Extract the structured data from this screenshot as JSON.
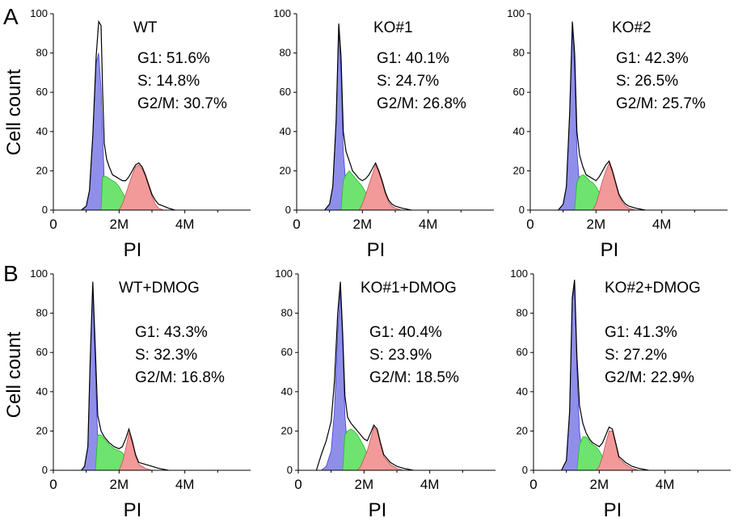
{
  "figure": {
    "panel_labels": [
      "A",
      "B"
    ],
    "ylabel": "Cell count",
    "xlabel": "PI"
  },
  "colors": {
    "g1": "#8f8fea",
    "s": "#6fe36f",
    "g2m": "#f29a9a",
    "outline": "#000000"
  },
  "chart_data": [
    {
      "type": "area",
      "title": "WT",
      "xlabel": "PI",
      "ylabel": "Cell count",
      "xticks": [
        "0",
        "2M",
        "4M"
      ],
      "yticks": [
        "0",
        "20",
        "40",
        "60",
        "80",
        "100"
      ],
      "xlim": [
        0,
        6.0
      ],
      "ylim": [
        0,
        100
      ],
      "stats": [
        "G1: 51.6%",
        "S: 14.8%",
        "G2/M: 30.7%"
      ],
      "x": [
        0.85,
        1.0,
        1.1,
        1.2,
        1.3,
        1.38,
        1.45,
        1.5,
        1.55,
        1.62,
        1.7,
        1.8,
        1.9,
        2.0,
        2.1,
        2.2,
        2.3,
        2.4,
        2.5,
        2.6,
        2.7,
        2.8,
        2.9,
        3.0,
        3.1,
        3.2,
        3.35,
        3.5,
        3.7
      ],
      "total": [
        0,
        2,
        10,
        38,
        78,
        96,
        94,
        60,
        34,
        26,
        22,
        18,
        17,
        16,
        15,
        15,
        17,
        20,
        23,
        24,
        22,
        18,
        13,
        8,
        5,
        3,
        2,
        1,
        0
      ],
      "g1": [
        0,
        2,
        10,
        38,
        75,
        80,
        62,
        38,
        15,
        5,
        1,
        0,
        0,
        0,
        0,
        0,
        0,
        0,
        0,
        0,
        0,
        0,
        0,
        0,
        0,
        0,
        0,
        0,
        0
      ],
      "s": [
        0,
        0,
        0,
        0,
        0,
        0,
        0,
        17,
        17,
        17,
        16,
        15,
        14,
        12,
        9,
        6,
        3,
        1,
        0,
        0,
        0,
        0,
        0,
        0,
        0,
        0,
        0,
        0,
        0
      ],
      "g2m": [
        0,
        0,
        0,
        0,
        0,
        0,
        0,
        0,
        0,
        0,
        0,
        0,
        0,
        0,
        3,
        8,
        13,
        18,
        22,
        23,
        21,
        17,
        12,
        7,
        3,
        1,
        0,
        0,
        0
      ]
    },
    {
      "type": "area",
      "title": "KO#1",
      "xlabel": "PI",
      "ylabel": "Cell count",
      "xticks": [
        "0",
        "2M",
        "4M"
      ],
      "yticks": [
        "0",
        "20",
        "40",
        "60",
        "80",
        "100"
      ],
      "xlim": [
        0,
        6.0
      ],
      "ylim": [
        0,
        100
      ],
      "stats": [
        "G1: 40.1%",
        "S: 24.7%",
        "G2/M: 26.8%"
      ],
      "x": [
        0.85,
        1.0,
        1.1,
        1.2,
        1.28,
        1.35,
        1.42,
        1.5,
        1.6,
        1.7,
        1.8,
        1.9,
        2.0,
        2.1,
        2.2,
        2.3,
        2.4,
        2.5,
        2.6,
        2.7,
        2.8,
        2.9,
        3.0,
        3.2,
        3.5
      ],
      "total": [
        0,
        3,
        12,
        45,
        95,
        78,
        40,
        30,
        25,
        20,
        18,
        16,
        15,
        16,
        18,
        21,
        24,
        20,
        15,
        9,
        5,
        3,
        2,
        1,
        0
      ],
      "g1": [
        0,
        3,
        12,
        45,
        92,
        70,
        30,
        12,
        3,
        0,
        0,
        0,
        0,
        0,
        0,
        0,
        0,
        0,
        0,
        0,
        0,
        0,
        0,
        0,
        0
      ],
      "s": [
        0,
        0,
        0,
        0,
        0,
        0,
        15,
        18,
        20,
        18,
        16,
        14,
        12,
        9,
        6,
        3,
        1,
        0,
        0,
        0,
        0,
        0,
        0,
        0,
        0
      ],
      "g2m": [
        0,
        0,
        0,
        0,
        0,
        0,
        0,
        0,
        0,
        0,
        0,
        0,
        3,
        8,
        13,
        18,
        23,
        19,
        14,
        8,
        4,
        2,
        1,
        0,
        0
      ]
    },
    {
      "type": "area",
      "title": "KO#2",
      "xlabel": "PI",
      "ylabel": "Cell count",
      "xticks": [
        "0",
        "2M",
        "4M"
      ],
      "yticks": [
        "0",
        "20",
        "40",
        "60",
        "80",
        "100"
      ],
      "xlim": [
        0,
        6.0
      ],
      "ylim": [
        0,
        100
      ],
      "stats": [
        "G1: 42.3%",
        "S: 26.5%",
        "G2/M: 25.7%"
      ],
      "x": [
        0.85,
        1.0,
        1.1,
        1.2,
        1.28,
        1.35,
        1.42,
        1.5,
        1.6,
        1.7,
        1.8,
        1.9,
        2.0,
        2.1,
        2.2,
        2.3,
        2.4,
        2.5,
        2.6,
        2.7,
        2.8,
        2.9,
        3.0,
        3.2,
        3.5
      ],
      "total": [
        0,
        3,
        12,
        50,
        96,
        80,
        40,
        28,
        22,
        18,
        17,
        16,
        15,
        17,
        20,
        23,
        25,
        20,
        14,
        8,
        5,
        3,
        2,
        1,
        0
      ],
      "g1": [
        0,
        3,
        12,
        50,
        93,
        72,
        30,
        12,
        3,
        0,
        0,
        0,
        0,
        0,
        0,
        0,
        0,
        0,
        0,
        0,
        0,
        0,
        0,
        0,
        0
      ],
      "s": [
        0,
        0,
        0,
        0,
        0,
        0,
        14,
        17,
        18,
        17,
        15,
        14,
        12,
        9,
        6,
        3,
        1,
        0,
        0,
        0,
        0,
        0,
        0,
        0,
        0
      ],
      "g2m": [
        0,
        0,
        0,
        0,
        0,
        0,
        0,
        0,
        0,
        0,
        0,
        0,
        3,
        9,
        15,
        20,
        24,
        19,
        13,
        7,
        4,
        2,
        1,
        0,
        0
      ]
    },
    {
      "type": "area",
      "title": "WT+DMOG",
      "xlabel": "PI",
      "ylabel": "Cell count",
      "xticks": [
        "0",
        "2M",
        "4M"
      ],
      "yticks": [
        "0",
        "20",
        "40",
        "60",
        "80",
        "100"
      ],
      "xlim": [
        0,
        6.0
      ],
      "ylim": [
        0,
        100
      ],
      "stats": [
        "G1: 43.3%",
        "S: 32.3%",
        "G2/M: 16.8%"
      ],
      "x": [
        0.85,
        0.95,
        1.05,
        1.12,
        1.2,
        1.28,
        1.35,
        1.45,
        1.55,
        1.7,
        1.85,
        2.0,
        2.1,
        2.2,
        2.3,
        2.4,
        2.5,
        2.6,
        2.8,
        3.0,
        3.2,
        3.5
      ],
      "total": [
        0,
        2,
        12,
        55,
        96,
        60,
        28,
        20,
        17,
        14,
        12,
        11,
        12,
        16,
        21,
        15,
        8,
        4,
        3,
        2,
        1,
        0
      ],
      "g1": [
        0,
        2,
        12,
        55,
        93,
        50,
        15,
        5,
        1,
        0,
        0,
        0,
        0,
        0,
        0,
        0,
        0,
        0,
        0,
        0,
        0,
        0
      ],
      "s": [
        0,
        0,
        0,
        0,
        0,
        0,
        18,
        18,
        16,
        13,
        11,
        10,
        9,
        6,
        3,
        1,
        0,
        0,
        0,
        0,
        0,
        0
      ],
      "g2m": [
        0,
        0,
        0,
        0,
        0,
        0,
        0,
        0,
        0,
        0,
        0,
        0,
        4,
        11,
        19,
        14,
        7,
        3,
        1,
        0,
        0,
        0
      ]
    },
    {
      "type": "area",
      "title": "KO#1+DMOG",
      "xlabel": "PI",
      "ylabel": "Cell count",
      "xticks": [
        "0",
        "2M",
        "4M"
      ],
      "yticks": [
        "0",
        "20",
        "40",
        "60",
        "80",
        "100"
      ],
      "xlim": [
        0,
        6.0
      ],
      "ylim": [
        0,
        100
      ],
      "stats": [
        "G1: 40.4%",
        "S: 23.9%",
        "G2/M: 18.5%"
      ],
      "x": [
        0.55,
        0.7,
        0.85,
        1.0,
        1.1,
        1.2,
        1.28,
        1.35,
        1.42,
        1.5,
        1.6,
        1.7,
        1.8,
        1.9,
        2.0,
        2.1,
        2.2,
        2.3,
        2.4,
        2.5,
        2.6,
        2.8,
        3.0,
        3.2,
        3.5
      ],
      "total": [
        0,
        8,
        15,
        25,
        45,
        80,
        96,
        70,
        38,
        27,
        24,
        22,
        20,
        18,
        16,
        15,
        19,
        23,
        21,
        14,
        8,
        4,
        2,
        1,
        0
      ],
      "g1": [
        0,
        0,
        2,
        10,
        30,
        70,
        92,
        65,
        28,
        10,
        3,
        0,
        0,
        0,
        0,
        0,
        0,
        0,
        0,
        0,
        0,
        0,
        0,
        0,
        0
      ],
      "s": [
        0,
        0,
        0,
        0,
        0,
        0,
        0,
        0,
        18,
        20,
        21,
        20,
        18,
        15,
        12,
        8,
        4,
        1,
        0,
        0,
        0,
        0,
        0,
        0,
        0
      ],
      "g2m": [
        0,
        0,
        0,
        0,
        0,
        0,
        0,
        0,
        0,
        0,
        0,
        0,
        0,
        2,
        6,
        10,
        16,
        22,
        20,
        13,
        7,
        3,
        1,
        0,
        0
      ]
    },
    {
      "type": "area",
      "title": "KO#2+DMOG",
      "xlabel": "PI",
      "ylabel": "Cell count",
      "xticks": [
        "0",
        "2M",
        "4M"
      ],
      "yticks": [
        "0",
        "20",
        "40",
        "60",
        "80",
        "100"
      ],
      "xlim": [
        0,
        6.0
      ],
      "ylim": [
        0,
        100
      ],
      "stats": [
        "G1: 41.3%",
        "S: 27.2%",
        "G2/M: 22.9%"
      ],
      "x": [
        0.85,
        1.0,
        1.1,
        1.18,
        1.25,
        1.32,
        1.4,
        1.5,
        1.6,
        1.7,
        1.8,
        1.9,
        2.0,
        2.1,
        2.2,
        2.3,
        2.4,
        2.5,
        2.6,
        2.8,
        3.0,
        3.2,
        3.5
      ],
      "total": [
        0,
        5,
        30,
        88,
        97,
        58,
        33,
        24,
        19,
        16,
        14,
        13,
        12,
        14,
        18,
        22,
        21,
        14,
        7,
        4,
        2,
        1,
        0
      ],
      "g1": [
        0,
        5,
        30,
        86,
        94,
        52,
        20,
        6,
        1,
        0,
        0,
        0,
        0,
        0,
        0,
        0,
        0,
        0,
        0,
        0,
        0,
        0,
        0
      ],
      "s": [
        0,
        0,
        0,
        0,
        0,
        0,
        13,
        17,
        17,
        15,
        13,
        12,
        10,
        7,
        4,
        1,
        0,
        0,
        0,
        0,
        0,
        0,
        0
      ],
      "g2m": [
        0,
        0,
        0,
        0,
        0,
        0,
        0,
        0,
        0,
        0,
        0,
        0,
        2,
        7,
        14,
        20,
        20,
        13,
        6,
        3,
        1,
        0,
        0
      ]
    }
  ]
}
